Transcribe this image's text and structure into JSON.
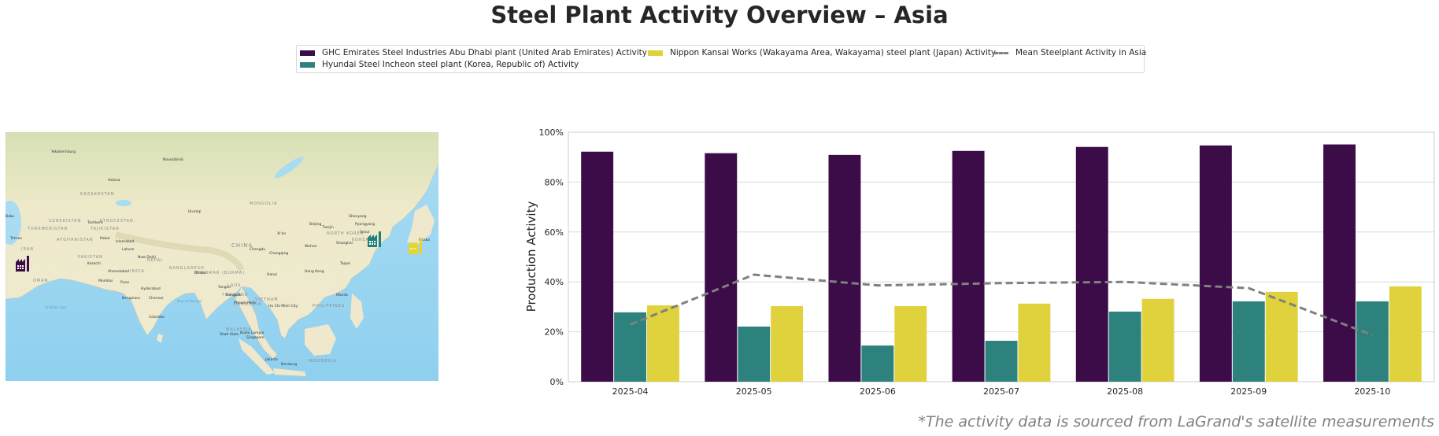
{
  "title": "Steel Plant Activity Overview – Asia",
  "legend": {
    "items": [
      {
        "label": "GHC Emirates Steel Industries Abu Dhabi plant (United Arab Emirates) Activity",
        "color": "#3b0c47",
        "type": "bar"
      },
      {
        "label": "Hyundai Steel Incheon steel plant (Korea, Republic of) Activity",
        "color": "#2e827d",
        "type": "bar"
      },
      {
        "label": "Nippon Kansai Works (Wakayama Area, Wakayama) steel plant (Japan) Activity",
        "color": "#e0d23c",
        "type": "bar"
      },
      {
        "label": "Mean Steelplant Activity in Asia",
        "color": "#808080",
        "type": "dashed-line"
      }
    ]
  },
  "map": {
    "region": "Asia",
    "markers": [
      {
        "name": "factory-marker-abu-dhabi",
        "plant": "GHC Emirates Steel Industries Abu Dhabi plant",
        "color": "#3b0c47"
      },
      {
        "name": "factory-marker-incheon",
        "plant": "Hyundai Steel Incheon steel plant",
        "color": "#1f7f7a"
      },
      {
        "name": "factory-marker-wakayama",
        "plant": "Nippon Kansai Works",
        "color": "#e6d52a"
      }
    ],
    "labels": {
      "countries": [
        "KAZAKHSTAN",
        "MONGOLIA",
        "UZBEKISTAN",
        "TURKMENISTAN",
        "KYRGYZSTAN",
        "TAJIKISTAN",
        "AFGHANISTAN",
        "IRAN",
        "PAKISTAN",
        "NEPAL",
        "INDIA",
        "BANGLADESH",
        "MYANMAR (BURMA)",
        "CHINA",
        "LAOS",
        "THAILAND",
        "VIETNAM",
        "CAMBODIA",
        "PHILIPPINES",
        "MALAYSIA",
        "INDONESIA",
        "NORTH KOREA",
        "KOREA",
        "OMAN"
      ],
      "cities": [
        "Yekaterinburg",
        "Novosibirsk",
        "Astana",
        "Urumqi",
        "Tashkent",
        "Kabul",
        "Islamabad",
        "Lahore",
        "New Delhi",
        "Karachi",
        "Ahmedabad",
        "Mumbai",
        "Pune",
        "Hyderabad",
        "Bengaluru",
        "Chennai",
        "Colombo",
        "Dhaka",
        "Yangon",
        "Bangkok",
        "Phnom Penh",
        "Ho Chi Minh City",
        "Hanoi",
        "Hong Kong",
        "Chengdu",
        "Chongqing",
        "Xi'an",
        "Wuhan",
        "Shanghai",
        "Taipei",
        "Manila",
        "Beijing",
        "Tianjin",
        "Shenyang",
        "Pyongyang",
        "Seoul",
        "Osaka",
        "Tehran",
        "Baku",
        "Kuala Lumpur",
        "Singapore",
        "Shah Alam",
        "Jakarta",
        "Bandung"
      ],
      "seas": [
        "Arabian Sea",
        "Bay of Bengal"
      ]
    }
  },
  "chart_data": {
    "type": "bar",
    "title": "",
    "xlabel": "",
    "ylabel": "Production Activity",
    "ylim": [
      0,
      100
    ],
    "yticks": [
      "0%",
      "20%",
      "40%",
      "60%",
      "80%",
      "100%"
    ],
    "ytick_values": [
      0,
      20,
      40,
      60,
      80,
      100
    ],
    "grid": true,
    "legend_position": "top-center",
    "categories": [
      "2025-04",
      "2025-05",
      "2025-06",
      "2025-07",
      "2025-08",
      "2025-09",
      "2025-10"
    ],
    "series": [
      {
        "name": "GHC Emirates Steel Industries Abu Dhabi plant (United Arab Emirates) Activity",
        "type": "bar",
        "color": "#3b0c47",
        "values": [
          92.2,
          91.6,
          90.9,
          92.5,
          94.1,
          94.7,
          95.1
        ]
      },
      {
        "name": "Hyundai Steel Incheon steel plant (Korea, Republic of) Activity",
        "type": "bar",
        "color": "#2e827d",
        "values": [
          27.8,
          22.1,
          14.5,
          16.4,
          28.1,
          32.2,
          32.2
        ]
      },
      {
        "name": "Nippon Kansai Works (Wakayama Area, Wakayama) steel plant (Japan) Activity",
        "type": "bar",
        "color": "#e0d23c",
        "values": [
          30.6,
          30.3,
          30.3,
          31.3,
          33.2,
          36.0,
          38.2
        ]
      },
      {
        "name": "Mean Steelplant Activity in Asia",
        "type": "line",
        "style": "dashed",
        "color": "#808080",
        "values": [
          22.9,
          42.9,
          38.6,
          39.5,
          40.0,
          37.5,
          18.7
        ]
      }
    ]
  },
  "source_note": "*The activity data is sourced from LaGrand's satellite measurements"
}
